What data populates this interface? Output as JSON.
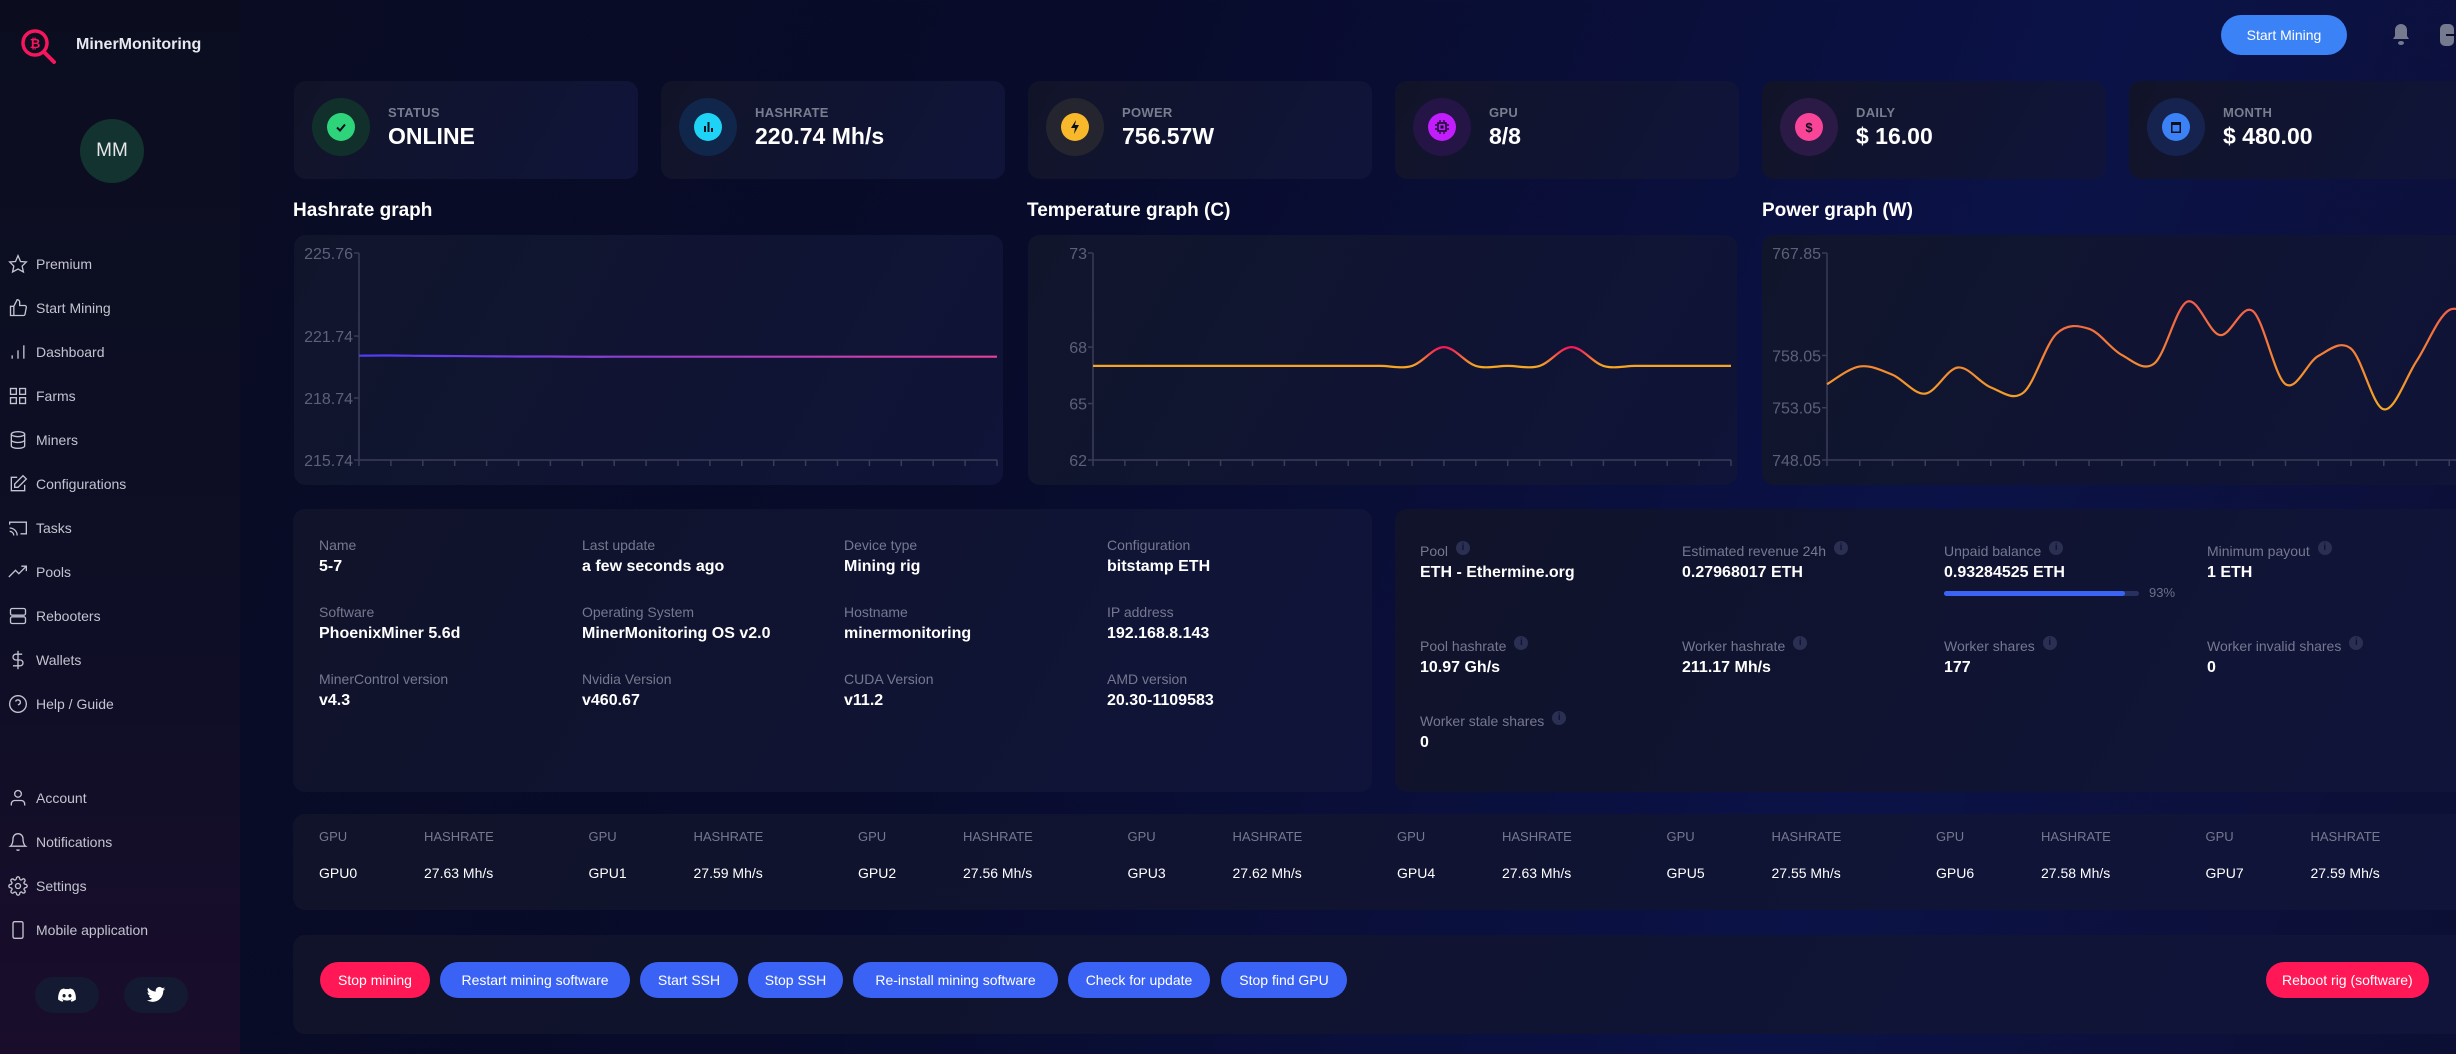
{
  "app": {
    "title": "MinerMonitoring",
    "avatar_initials": "MM"
  },
  "sidebar": {
    "items": [
      {
        "label": "Premium",
        "icon": "star-icon"
      },
      {
        "label": "Start Mining",
        "icon": "thumbs-up-icon"
      },
      {
        "label": "Dashboard",
        "icon": "bar-chart-icon"
      },
      {
        "label": "Farms",
        "icon": "grid-icon"
      },
      {
        "label": "Miners",
        "icon": "database-icon"
      },
      {
        "label": "Configurations",
        "icon": "edit-icon"
      },
      {
        "label": "Tasks",
        "icon": "cast-icon"
      },
      {
        "label": "Pools",
        "icon": "trending-up-icon"
      },
      {
        "label": "Rebooters",
        "icon": "server-icon"
      },
      {
        "label": "Wallets",
        "icon": "dollar-icon"
      },
      {
        "label": "Help / Guide",
        "icon": "help-circle-icon"
      }
    ],
    "bottom_items": [
      {
        "label": "Account",
        "icon": "user-icon"
      },
      {
        "label": "Notifications",
        "icon": "bell-icon"
      },
      {
        "label": "Settings",
        "icon": "gear-icon"
      },
      {
        "label": "Mobile application",
        "icon": "smartphone-icon"
      }
    ],
    "social": [
      "discord-icon",
      "twitter-icon"
    ]
  },
  "topbar": {
    "start_mining_label": "Start Mining"
  },
  "stats": [
    {
      "label": "STATUS",
      "value": "ONLINE",
      "icon": "check-circle-icon",
      "color": "#2ed47a",
      "bg": "#11302c"
    },
    {
      "label": "HASHRATE",
      "value": "220.74 Mh/s",
      "icon": "bar-chart-icon",
      "color": "#1ed3f5",
      "bg": "#10264a"
    },
    {
      "label": "POWER",
      "value": "756.57W",
      "icon": "lightning-icon",
      "color": "#f7b92b",
      "bg": "#252530"
    },
    {
      "label": "GPU",
      "value": "8/8",
      "icon": "chip-icon",
      "color": "#c21dfc",
      "bg": "#251547"
    },
    {
      "label": "DAILY",
      "value": "$ 16.00",
      "icon": "dollar-icon",
      "color": "#f94597",
      "bg": "#2a1a45"
    },
    {
      "label": "MONTH",
      "value": "$ 480.00",
      "icon": "calendar-icon",
      "color": "#3b82f6",
      "bg": "#16234e"
    }
  ],
  "chart_data": [
    {
      "type": "line",
      "title": "Hashrate graph",
      "xlabel": "",
      "ylabel": "",
      "yticks": [
        "225.76",
        "221.74",
        "218.74",
        "215.74"
      ],
      "ytick_values": [
        225.76,
        221.74,
        218.74,
        215.74
      ],
      "ylim": [
        215.74,
        225.76
      ],
      "x_tick_count": 21,
      "series": [
        {
          "name": "hashrate",
          "values": [
            220.79,
            220.8,
            220.78,
            220.77,
            220.76,
            220.75,
            220.75,
            220.74,
            220.74,
            220.74,
            220.74,
            220.74,
            220.74,
            220.74,
            220.74,
            220.74,
            220.74,
            220.74,
            220.74,
            220.74,
            220.74
          ],
          "color_start": "#4f3df5",
          "color_end": "#e6409a"
        }
      ],
      "grid": false,
      "legend": "none"
    },
    {
      "type": "line",
      "title": "Temperature graph (C)",
      "xlabel": "",
      "ylabel": "",
      "yticks": [
        "73",
        "68",
        "65",
        "62"
      ],
      "ytick_values": [
        73,
        68,
        65,
        62
      ],
      "ylim": [
        62,
        73
      ],
      "x_tick_count": 21,
      "series": [
        {
          "name": "temperature",
          "values": [
            67,
            67,
            67,
            67,
            67,
            67,
            67,
            67,
            67,
            67,
            67,
            68,
            67,
            67,
            67,
            68,
            67,
            67,
            67,
            67,
            67
          ],
          "color_base": "#f5a623",
          "color_peak": "#f7165d"
        }
      ],
      "grid": false,
      "legend": "none"
    },
    {
      "type": "line",
      "title": "Power graph (W)",
      "xlabel": "",
      "ylabel": "",
      "yticks": [
        "767.85",
        "758.05",
        "753.05",
        "748.05"
      ],
      "ytick_values": [
        767.85,
        758.05,
        753.05,
        748.05
      ],
      "ylim": [
        748.05,
        767.85
      ],
      "x_tick_count": 21,
      "series": [
        {
          "name": "power",
          "values": [
            755.3,
            757.0,
            756.2,
            754.4,
            756.9,
            755.0,
            754.5,
            760.1,
            760.6,
            758.1,
            757.3,
            763.2,
            760.0,
            762.3,
            755.3,
            758.0,
            758.7,
            752.9,
            757.5,
            762.4,
            761.0
          ],
          "color_base": "#f5a623",
          "color_peak": "#f45d48"
        }
      ],
      "grid": false,
      "legend": "none"
    }
  ],
  "device_info": [
    {
      "label": "Name",
      "value": "5-7"
    },
    {
      "label": "Last update",
      "value": "a few seconds ago"
    },
    {
      "label": "Device type",
      "value": "Mining rig"
    },
    {
      "label": "Configuration",
      "value": "bitstamp ETH"
    },
    {
      "label": "Software",
      "value": "PhoenixMiner 5.6d"
    },
    {
      "label": "Operating System",
      "value": "MinerMonitoring OS v2.0"
    },
    {
      "label": "Hostname",
      "value": "minermonitoring"
    },
    {
      "label": "IP address",
      "value": "192.168.8.143"
    },
    {
      "label": "MinerControl version",
      "value": "v4.3"
    },
    {
      "label": "Nvidia Version",
      "value": "v460.67"
    },
    {
      "label": "CUDA Version",
      "value": "v11.2"
    },
    {
      "label": "AMD version",
      "value": "20.30-1109583"
    }
  ],
  "pool_info": [
    {
      "label": "Pool",
      "value": "ETH - Ethermine.org"
    },
    {
      "label": "Estimated revenue 24h",
      "value": "0.27968017 ETH"
    },
    {
      "label": "Unpaid balance",
      "value": "0.93284525 ETH",
      "progress_percent": 93,
      "progress_label": "93%"
    },
    {
      "label": "Minimum payout",
      "value": "1 ETH"
    },
    {
      "label": "Pool hashrate",
      "value": "10.97 Gh/s"
    },
    {
      "label": "Worker hashrate",
      "value": "211.17 Mh/s"
    },
    {
      "label": "Worker shares",
      "value": "177"
    },
    {
      "label": "Worker invalid shares",
      "value": "0"
    },
    {
      "label": "Worker stale shares",
      "value": "0"
    }
  ],
  "gpus": {
    "header_gpu": "GPU",
    "header_hashrate": "HASHRATE",
    "items": [
      {
        "name": "GPU0",
        "hashrate": "27.63 Mh/s"
      },
      {
        "name": "GPU1",
        "hashrate": "27.59 Mh/s"
      },
      {
        "name": "GPU2",
        "hashrate": "27.56 Mh/s"
      },
      {
        "name": "GPU3",
        "hashrate": "27.62 Mh/s"
      },
      {
        "name": "GPU4",
        "hashrate": "27.63 Mh/s"
      },
      {
        "name": "GPU5",
        "hashrate": "27.55 Mh/s"
      },
      {
        "name": "GPU6",
        "hashrate": "27.58 Mh/s"
      },
      {
        "name": "GPU7",
        "hashrate": "27.59 Mh/s"
      }
    ]
  },
  "actions": {
    "buttons": [
      {
        "label": "Stop mining",
        "variant": "danger"
      },
      {
        "label": "Restart mining software",
        "variant": "primary"
      },
      {
        "label": "Start SSH",
        "variant": "primary"
      },
      {
        "label": "Stop SSH",
        "variant": "primary"
      },
      {
        "label": "Re-install mining software",
        "variant": "primary"
      },
      {
        "label": "Check for update",
        "variant": "primary"
      },
      {
        "label": "Stop find GPU",
        "variant": "primary"
      }
    ],
    "reboot_label": "Reboot rig (software)"
  },
  "colors": {
    "accent_blue": "#3a63f5",
    "danger_red": "#ff1756",
    "logo_pink": "#f7165d"
  }
}
